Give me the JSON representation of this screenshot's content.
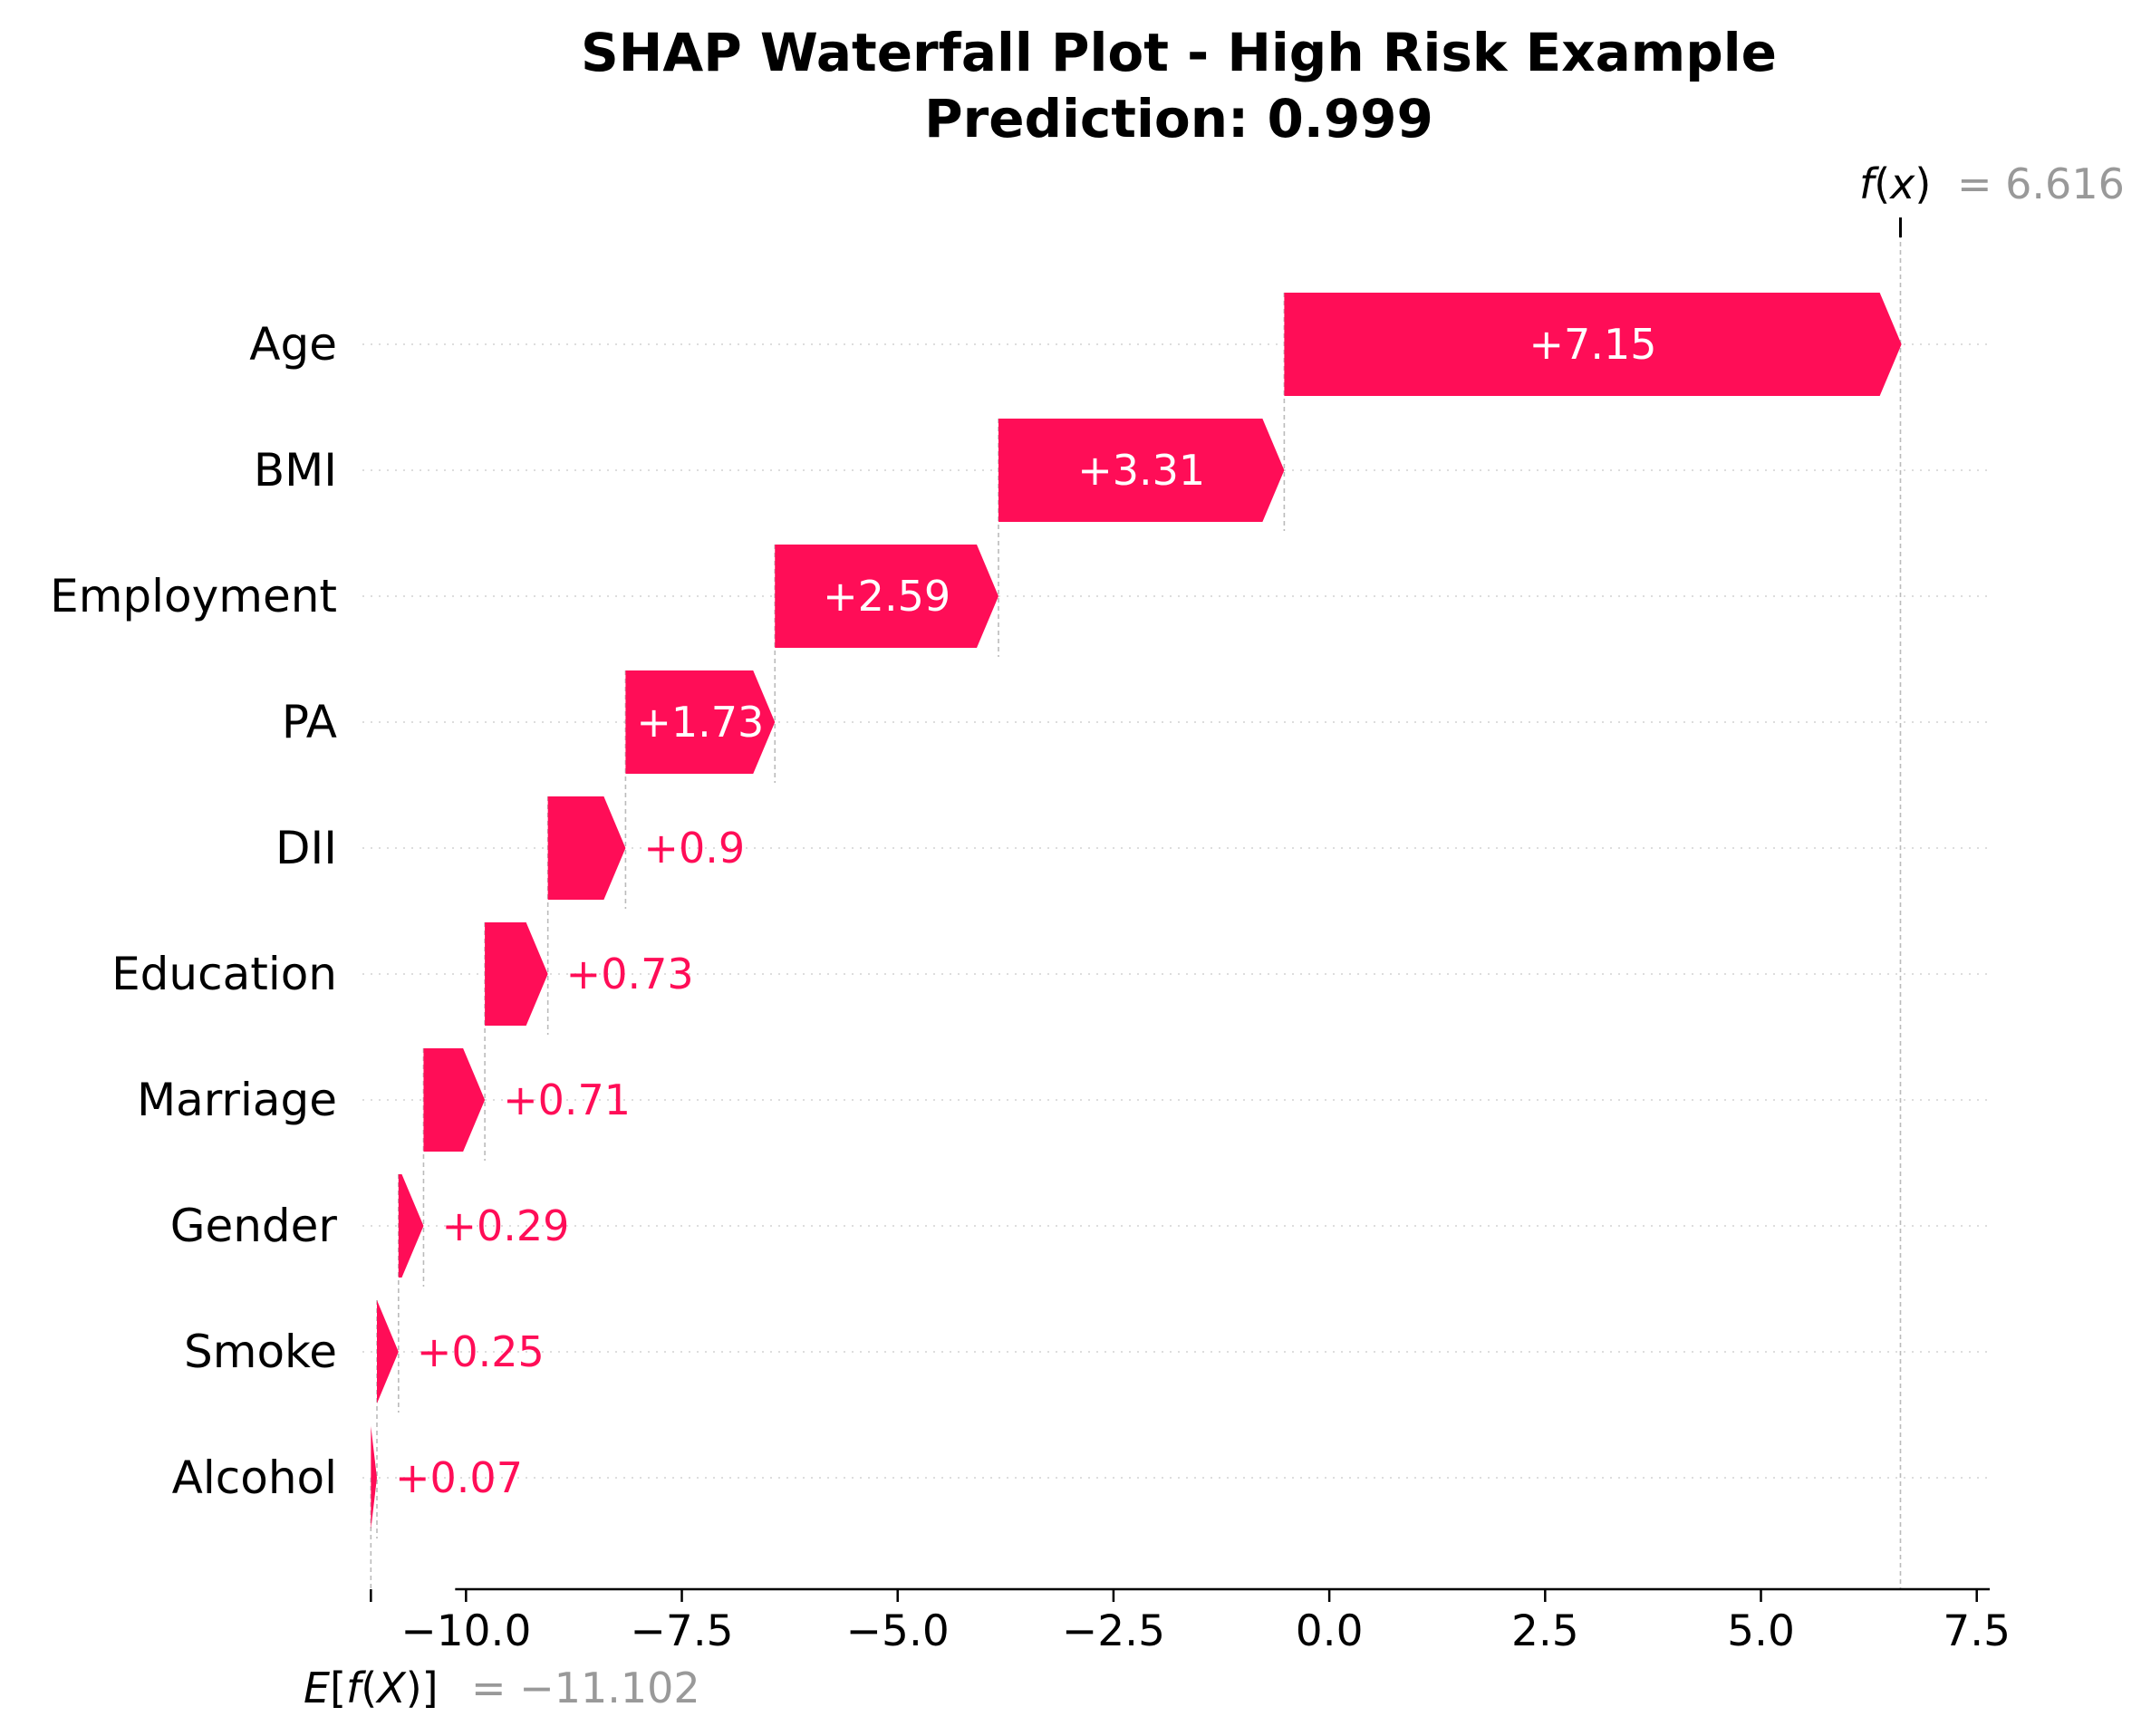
{
  "chart_data": {
    "type": "bar",
    "subtype": "waterfall",
    "title_lines": [
      "SHAP Waterfall Plot - High Risk Example",
      "Prediction: 0.999"
    ],
    "features": [
      "Age",
      "BMI",
      "Employment",
      "PA",
      "DII",
      "Education",
      "Marriage",
      "Gender",
      "Smoke",
      "Alcohol"
    ],
    "shap_values": [
      7.15,
      3.31,
      2.59,
      1.73,
      0.9,
      0.73,
      0.71,
      0.29,
      0.25,
      0.07
    ],
    "value_labels": [
      "+7.15",
      "+3.31",
      "+2.59",
      "+1.73",
      "+0.9",
      "+0.73",
      "+0.71",
      "+0.29",
      "+0.25",
      "+0.07"
    ],
    "base_value": -11.102,
    "output_value": 6.616,
    "base_label": {
      "name_parts": [
        "E",
        "[",
        "f",
        "(",
        "X",
        ")]"
      ],
      "value": "= −11.102"
    },
    "output_label": {
      "name_parts": [
        "f",
        "(",
        "x",
        ")"
      ],
      "value": "= 6.616"
    },
    "xlim": [
      -11.2,
      7.65
    ],
    "xticks": [
      -10.0,
      -7.5,
      -5.0,
      -2.5,
      0.0,
      2.5,
      5.0,
      7.5
    ],
    "xtick_labels": [
      "−10.0",
      "−7.5",
      "−5.0",
      "−2.5",
      "0.0",
      "2.5",
      "5.0",
      "7.5"
    ],
    "grid": "horizontal dotted",
    "colors": {
      "positive": "#ff0d57",
      "guide": "#bbbbbb",
      "grid": "#dddddd",
      "annotation_value": "#999999"
    }
  }
}
